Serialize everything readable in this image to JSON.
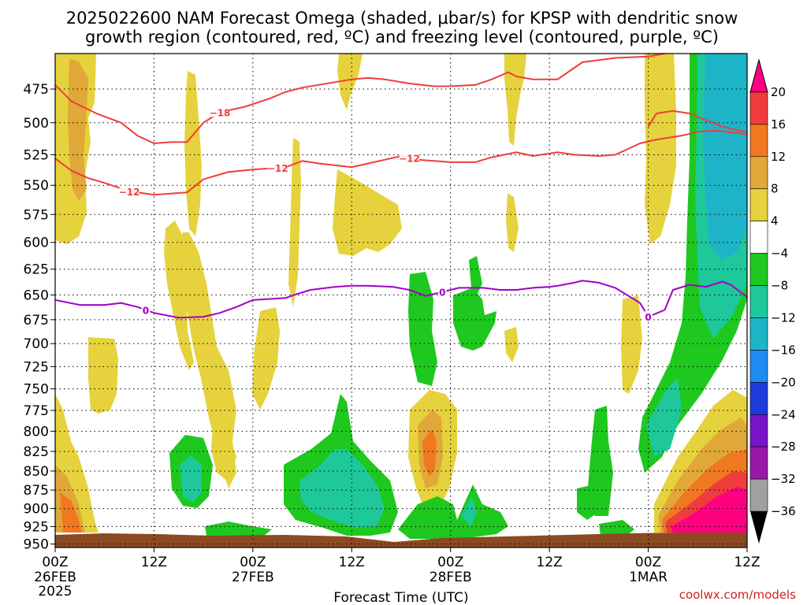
{
  "title_line1": "2025022600 NAM Forecast Omega (shaded, μbar/s) for KPSP with dendritic snow",
  "title_line2": "growth region (contoured, red, ºC) and freezing level (contoured, purple, ºC)",
  "credit": "coolwx.com/models",
  "chart_data": {
    "type": "heatmap",
    "title": "2025022600 NAM Forecast Omega (shaded, μbar/s) for KPSP with dendritic snow growth region (contoured, red, ºC) and freezing level (contoured, purple, ºC)",
    "xlabel": "Forecast Time (UTC)",
    "ylabel": "",
    "x_ticks": [
      {
        "label": "00Z",
        "date": "26FEB",
        "year": "2025",
        "hour": 0
      },
      {
        "label": "12Z",
        "hour": 12
      },
      {
        "label": "00Z",
        "date": "27FEB",
        "hour": 24
      },
      {
        "label": "12Z",
        "hour": 36
      },
      {
        "label": "00Z",
        "date": "28FEB",
        "hour": 48
      },
      {
        "label": "12Z",
        "hour": 60
      },
      {
        "label": "00Z",
        "date": "1MAR",
        "hour": 72
      },
      {
        "label": "12Z",
        "hour": 84
      }
    ],
    "xlim": [
      0,
      84
    ],
    "y_ticks": [
      475,
      500,
      525,
      550,
      575,
      600,
      625,
      650,
      675,
      700,
      725,
      750,
      775,
      800,
      825,
      850,
      875,
      900,
      925,
      950
    ],
    "ylim": [
      955,
      450
    ],
    "y_scale": "log",
    "grid": true,
    "colorbar": {
      "labels": [
        "20",
        "16",
        "12",
        "8",
        "4",
        "-4",
        "-8",
        "-12",
        "-16",
        "-20",
        "-24",
        "-28",
        "-32",
        "-36"
      ],
      "colors": [
        "#ff0080",
        "#f03c3c",
        "#f07820",
        "#e0a838",
        "#e6d23c",
        "#ffffff",
        "#1ec81e",
        "#1ec89a",
        "#1eb4c8",
        "#1e8cf0",
        "#1e3cdc",
        "#7814c8",
        "#9a18a8",
        "#a0a0a0"
      ]
    },
    "contours": [
      {
        "name": "-18",
        "color": "#f03c3c",
        "label_at_hour": 20
      },
      {
        "name": "-12",
        "color": "#f03c3c",
        "label_at_hour": 9
      },
      {
        "name": "-12",
        "color": "#f03c3c",
        "label_at_hour": 27
      },
      {
        "name": "-12",
        "color": "#f03c3c",
        "label_at_hour": 43
      },
      {
        "name": "0",
        "color": "#a000c8",
        "label_at_hour": 11
      },
      {
        "name": "0",
        "color": "#a000c8",
        "label_at_hour": 47
      },
      {
        "name": "0",
        "color": "#a000c8",
        "label_at_hour": 72
      }
    ],
    "series": [
      {
        "color": "#f03c3c",
        "value": -18,
        "points": [
          [
            0,
            472
          ],
          [
            2,
            484
          ],
          [
            5,
            493
          ],
          [
            8,
            500
          ],
          [
            10,
            510
          ],
          [
            12,
            516
          ],
          [
            14,
            515
          ],
          [
            16,
            515
          ],
          [
            18,
            500
          ],
          [
            20,
            492
          ],
          [
            23,
            488
          ],
          [
            26,
            482
          ],
          [
            28,
            477
          ],
          [
            30,
            474
          ],
          [
            34,
            470
          ],
          [
            36,
            468
          ],
          [
            38,
            467
          ],
          [
            40,
            468
          ],
          [
            43,
            471
          ],
          [
            46,
            473
          ],
          [
            48,
            473
          ],
          [
            51,
            472
          ],
          [
            53,
            468
          ],
          [
            55,
            463
          ],
          [
            56,
            466
          ],
          [
            58,
            468
          ],
          [
            61,
            468
          ],
          [
            62,
            464
          ],
          [
            64,
            456
          ],
          [
            68,
            453
          ],
          [
            72,
            452
          ],
          [
            74,
            450
          ]
        ]
      },
      {
        "color": "#f03c3c",
        "value": -18,
        "points": [
          [
            72,
            503
          ],
          [
            73,
            493
          ],
          [
            75,
            491
          ],
          [
            77,
            493
          ],
          [
            79,
            498
          ],
          [
            81,
            503
          ],
          [
            83,
            506
          ],
          [
            84,
            507
          ]
        ]
      },
      {
        "color": "#f03c3c",
        "value": -12,
        "points": [
          [
            0,
            528
          ],
          [
            2,
            538
          ],
          [
            4,
            544
          ],
          [
            6,
            548
          ],
          [
            9,
            555
          ],
          [
            12,
            558
          ],
          [
            16,
            556
          ],
          [
            18,
            545
          ],
          [
            21,
            539
          ],
          [
            24,
            537
          ],
          [
            28,
            535
          ],
          [
            30,
            530
          ],
          [
            32,
            532
          ],
          [
            36,
            535
          ],
          [
            38,
            532
          ],
          [
            40,
            529
          ],
          [
            42,
            526
          ],
          [
            44,
            529
          ],
          [
            46,
            530
          ],
          [
            48,
            531
          ],
          [
            51,
            531
          ],
          [
            53,
            527
          ],
          [
            56,
            523
          ],
          [
            58,
            526
          ],
          [
            60,
            524
          ],
          [
            61,
            523
          ],
          [
            63,
            525
          ],
          [
            66,
            526
          ],
          [
            68,
            525
          ],
          [
            70,
            519
          ],
          [
            71,
            516
          ],
          [
            73,
            513
          ],
          [
            76,
            510
          ],
          [
            78,
            507
          ],
          [
            80,
            506
          ],
          [
            83,
            508
          ],
          [
            84,
            509
          ]
        ]
      },
      {
        "color": "#a000c8",
        "value": 0,
        "points": [
          [
            0,
            655
          ],
          [
            3,
            660
          ],
          [
            6,
            660
          ],
          [
            8,
            658
          ],
          [
            10,
            662
          ],
          [
            12,
            668
          ],
          [
            15,
            673
          ],
          [
            18,
            672
          ],
          [
            20,
            668
          ],
          [
            22,
            662
          ],
          [
            24,
            655
          ],
          [
            28,
            653
          ],
          [
            29,
            650
          ],
          [
            31,
            645
          ],
          [
            34,
            642
          ],
          [
            36,
            641
          ],
          [
            38,
            641
          ],
          [
            41,
            642
          ],
          [
            43,
            645
          ],
          [
            45,
            651
          ],
          [
            47,
            647
          ],
          [
            49,
            643
          ],
          [
            52,
            643
          ],
          [
            54,
            645
          ],
          [
            56,
            645
          ],
          [
            58,
            643
          ],
          [
            60,
            642
          ],
          [
            61,
            641
          ],
          [
            63,
            638
          ],
          [
            64,
            636
          ],
          [
            66,
            638
          ],
          [
            68,
            643
          ],
          [
            71,
            658
          ],
          [
            72,
            672
          ],
          [
            74,
            665
          ],
          [
            75,
            645
          ],
          [
            77,
            640
          ],
          [
            79,
            642
          ],
          [
            81,
            637
          ],
          [
            82,
            640
          ],
          [
            84,
            652
          ]
        ]
      }
    ],
    "note_shading": "Omega shading reproduced approximately as filled regions (upward motion negative: greens/teals; downward motion positive: yellows/oranges/magenta)."
  }
}
